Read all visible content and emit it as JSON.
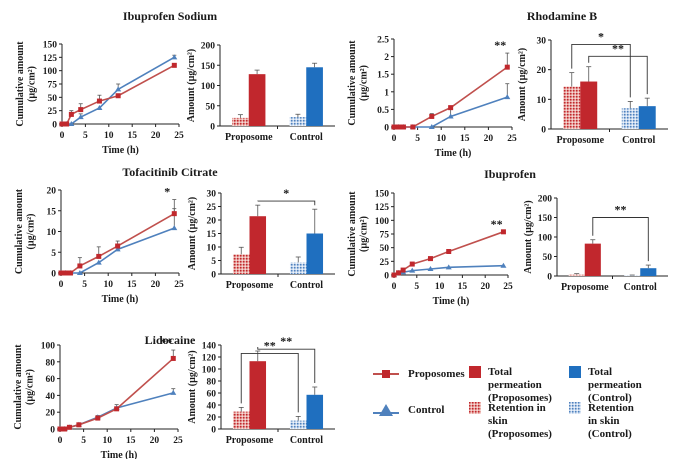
{
  "colors": {
    "proposome_line": "#C0504D",
    "control_line": "#4F81BD",
    "proposome_bar": "#C1272D",
    "control_bar": "#1F6FBF",
    "proposome_retention": "#D9756F",
    "control_retention": "#8FB0DA",
    "axis": "#222222"
  },
  "legend": {
    "proposomes": "Proposomes",
    "control": "Control",
    "total_proposomes": "Total permeation\n(Proposomes)",
    "total_control": "Total permeation\n(Control)",
    "retention_proposomes": "Retention in skin\n(Proposomes)",
    "retention_control": "Retention in skin\n(Control)"
  },
  "chart_data": [
    {
      "panel": "Ibuprofen Sodium",
      "title": "Ibuprofen Sodium",
      "line": {
        "type": "line",
        "xlabel": "Time (h)",
        "ylabel": "Cumulative amount (µg/cm²)",
        "xlim": [
          0,
          25
        ],
        "xticks": [
          0,
          5,
          10,
          15,
          20,
          25
        ],
        "ylim": [
          0,
          150
        ],
        "yticks": [
          0,
          25,
          50,
          75,
          100,
          125,
          150
        ],
        "x": [
          0,
          1,
          2,
          4,
          8,
          12,
          24
        ],
        "series": [
          {
            "name": "Proposomes",
            "values": [
              0,
              0,
              18,
              27,
              43,
              53,
              110
            ],
            "errors": [
              0,
              0,
              7,
              11,
              11,
              0,
              0
            ]
          },
          {
            "name": "Control",
            "values": [
              0,
              0,
              0,
              13,
              30,
              65,
              125
            ],
            "errors": [
              0,
              0,
              0,
              6,
              0,
              10,
              4
            ]
          }
        ],
        "annotation": ""
      },
      "bar": {
        "type": "bar",
        "ylabel": "Amount (µg/cm²)",
        "categories": [
          "Proposome",
          "Control"
        ],
        "ylim": [
          0,
          200
        ],
        "yticks": [
          0,
          50,
          100,
          150,
          200
        ],
        "series": [
          {
            "name": "Retention in skin",
            "values": [
              20,
              22
            ],
            "errors": [
              8,
              7
            ]
          },
          {
            "name": "Total permeation",
            "values": [
              128,
              145
            ],
            "errors": [
              10,
              10
            ]
          }
        ],
        "brackets": []
      }
    },
    {
      "panel": "Rhodamine B",
      "title": "Rhodamine B",
      "line": {
        "type": "line",
        "xlabel": "Time (h)",
        "ylabel": "Cumulative amount (µg/cm²)",
        "xlim": [
          0,
          25
        ],
        "xticks": [
          0,
          5,
          10,
          15,
          20,
          25
        ],
        "ylim": [
          0,
          2.5
        ],
        "yticks": [
          0,
          0.5,
          1,
          1.5,
          2,
          2.5
        ],
        "x": [
          0,
          1,
          2,
          4,
          8,
          12,
          24
        ],
        "series": [
          {
            "name": "Proposomes",
            "values": [
              0,
              0,
              0,
              0,
              0.3,
              0.55,
              1.7
            ],
            "errors": [
              0,
              0,
              0,
              0,
              0.08,
              0.05,
              0.4
            ]
          },
          {
            "name": "Control",
            "values": [
              0,
              0,
              0,
              0,
              0,
              0.3,
              0.85
            ],
            "errors": [
              0,
              0,
              0,
              0,
              0,
              0.25,
              0.38
            ]
          }
        ],
        "annotation": "**"
      },
      "bar": {
        "type": "bar",
        "ylabel": "Amount (µg/cm²)",
        "categories": [
          "Proposome",
          "Control"
        ],
        "ylim": [
          0,
          30
        ],
        "yticks": [
          0,
          10,
          20,
          30
        ],
        "series": [
          {
            "name": "Retention in skin",
            "values": [
              14.3,
              7
            ],
            "errors": [
              4.7,
              2.3
            ]
          },
          {
            "name": "Total permeation",
            "values": [
              16,
              7.7
            ],
            "errors": [
              5,
              2.7
            ]
          }
        ],
        "brackets": [
          {
            "label": "*",
            "from": "Proposome retention",
            "to": "Control retention",
            "level": 28.5
          },
          {
            "label": "**",
            "from": "Proposome total",
            "to": "Control total",
            "level": 24.5
          }
        ]
      }
    },
    {
      "panel": "Tofacitinib Citrate",
      "title": "Tofacitinib Citrate",
      "line": {
        "type": "line",
        "xlabel": "Time (h)",
        "ylabel": "Cumulative amount (µg/cm²)",
        "xlim": [
          0,
          25
        ],
        "xticks": [
          0,
          5,
          10,
          15,
          20,
          25
        ],
        "ylim": [
          0,
          20
        ],
        "yticks": [
          0,
          5,
          10,
          15,
          20
        ],
        "x": [
          0,
          1,
          2,
          4,
          8,
          12,
          24
        ],
        "series": [
          {
            "name": "Proposomes",
            "values": [
              0,
              0,
              0,
              1.7,
              4,
              6.5,
              14.3
            ],
            "errors": [
              0,
              0,
              0,
              2,
              2.3,
              1.2,
              3.4
            ]
          },
          {
            "name": "Control",
            "values": [
              0,
              0,
              0,
              0,
              2.5,
              5.7,
              10.8
            ],
            "errors": [
              0,
              0,
              0,
              0,
              0,
              0,
              4.7
            ]
          }
        ],
        "annotation": "*"
      },
      "bar": {
        "type": "bar",
        "ylabel": "Amount (µg/cm²)",
        "categories": [
          "Proposome",
          "Control"
        ],
        "ylim": [
          0,
          30
        ],
        "yticks": [
          0,
          5,
          10,
          15,
          20,
          25,
          30
        ],
        "series": [
          {
            "name": "Retention in skin",
            "values": [
              7.3,
              4.3
            ],
            "errors": [
              2.6,
              2
            ]
          },
          {
            "name": "Total permeation",
            "values": [
              21.4,
              15
            ],
            "errors": [
              4.1,
              9
            ]
          }
        ],
        "brackets": [
          {
            "label": "*",
            "from": "Proposome total",
            "to": "Control total",
            "level": 27
          }
        ]
      }
    },
    {
      "panel": "Ibuprofen",
      "title": "Ibuprofen",
      "line": {
        "type": "line",
        "xlabel": "Time (h)",
        "ylabel": "Cumulative amount (µg/cm²)",
        "xlim": [
          0,
          25
        ],
        "xticks": [
          0,
          5,
          10,
          15,
          20,
          25
        ],
        "ylim": [
          0,
          150
        ],
        "yticks": [
          0,
          25,
          50,
          75,
          100,
          125,
          150
        ],
        "x": [
          0,
          1,
          2,
          4,
          8,
          12,
          24
        ],
        "series": [
          {
            "name": "Proposomes",
            "values": [
              0,
              4,
              9,
              20,
              30,
              43,
              79
            ],
            "errors": [
              0,
              0,
              0,
              0,
              0,
              0,
              0
            ]
          },
          {
            "name": "Control",
            "values": [
              0,
              4,
              5,
              8,
              11,
              14,
              17
            ],
            "errors": [
              0,
              0,
              0,
              0,
              0,
              0,
              0
            ]
          }
        ],
        "annotation": "**"
      },
      "bar": {
        "type": "bar",
        "ylabel": "Amount (µg/cm²)",
        "categories": [
          "Proposome",
          "Control"
        ],
        "ylim": [
          0,
          200
        ],
        "yticks": [
          0,
          50,
          100,
          150,
          200
        ],
        "series": [
          {
            "name": "Retention in skin",
            "values": [
              4,
              1.5
            ],
            "errors": [
              2,
              1
            ]
          },
          {
            "name": "Total permeation",
            "values": [
              83,
              20
            ],
            "errors": [
              10,
              8
            ]
          }
        ],
        "brackets": [
          {
            "label": "**",
            "from": "Proposome total",
            "to": "Control total",
            "level": 150
          }
        ]
      }
    },
    {
      "panel": "Lidocaine",
      "title": "Lidocaine",
      "line": {
        "type": "line",
        "xlabel": "Time (h)",
        "ylabel": "Cumulative amount (µg/cm²)",
        "xlim": [
          0,
          25
        ],
        "xticks": [
          0,
          5,
          10,
          15,
          20,
          25
        ],
        "ylim": [
          0,
          100
        ],
        "yticks": [
          0,
          20,
          40,
          60,
          80,
          100
        ],
        "x": [
          0,
          1,
          2,
          4,
          8,
          12,
          24
        ],
        "series": [
          {
            "name": "Proposomes",
            "values": [
              0,
              0,
              2,
              5,
              13,
              24,
              84
            ],
            "errors": [
              0,
              0,
              0,
              0,
              0,
              0,
              10
            ]
          },
          {
            "name": "Control",
            "values": [
              0,
              0,
              2,
              5,
              14,
              25,
              43
            ],
            "errors": [
              0,
              0,
              0,
              0,
              2,
              4,
              5
            ]
          }
        ],
        "annotation": "**"
      },
      "bar": {
        "type": "bar",
        "ylabel": "Amount (µg/cm²)",
        "categories": [
          "Proposome",
          "Control"
        ],
        "ylim": [
          0,
          140
        ],
        "yticks": [
          0,
          20,
          40,
          60,
          80,
          100,
          120,
          140
        ],
        "series": [
          {
            "name": "Retention in skin",
            "values": [
              29,
              14
            ],
            "errors": [
              7,
              7
            ]
          },
          {
            "name": "Total permeation",
            "values": [
              113,
              57
            ],
            "errors": [
              17,
              13
            ]
          }
        ],
        "brackets": [
          {
            "label": "**",
            "from": "Proposome retention",
            "to": "Control retention",
            "level": 126
          },
          {
            "label": "**",
            "from": "Proposome total",
            "to": "Control total",
            "level": 133
          }
        ]
      }
    }
  ]
}
